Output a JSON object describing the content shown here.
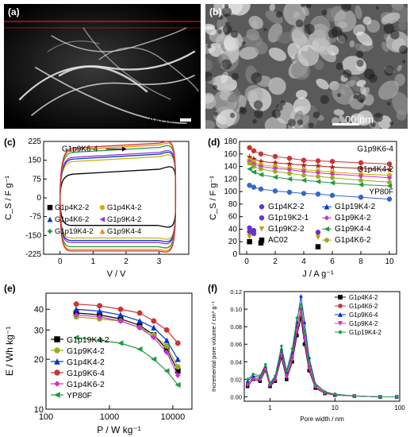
{
  "panels": {
    "a": {
      "label": "(a)",
      "scalebar_text": "200 nm"
    },
    "b": {
      "label": "(b)",
      "scalebar_text": "00 nm"
    },
    "c": {
      "label": "(c)"
    },
    "d": {
      "label": "(d)"
    },
    "e": {
      "label": "(e)"
    },
    "f": {
      "label": "(f)"
    }
  },
  "chart_data": [
    {
      "id": "c",
      "type": "line",
      "xlabel": "V / V",
      "ylabel": "C_S / F g⁻¹",
      "xlim": [
        -0.5,
        3.9
      ],
      "ylim": [
        -225,
        225
      ],
      "xticks": [
        0,
        1,
        2,
        3
      ],
      "yticks": [
        -225,
        -150,
        -75,
        0,
        75,
        150,
        225
      ],
      "annotation": "G1p9K6-4",
      "legend": [
        {
          "name": "G1p4K2-2",
          "color": "#000000",
          "marker": "square"
        },
        {
          "name": "G1p4K4-2",
          "color": "#c8b400",
          "marker": "circle"
        },
        {
          "name": "G1p4K6-2",
          "color": "#0033cc",
          "marker": "triangle"
        },
        {
          "name": "G1p9K4-2",
          "color": "#9933cc",
          "marker": "triangle-left"
        },
        {
          "name": "G1p19K4-2",
          "color": "#229944",
          "marker": "diamond"
        },
        {
          "name": "G1p9K4-4",
          "color": "#ff8800",
          "marker": "triangle"
        }
      ],
      "series": [
        {
          "name": "G1p4K2-2",
          "color": "#000000",
          "top": 108,
          "bottom": -110
        },
        {
          "name": "G1p4K4-2",
          "color": "#c8b400",
          "top": 158,
          "bottom": -160
        },
        {
          "name": "G1p4K6-2",
          "color": "#0033cc",
          "top": 168,
          "bottom": -170
        },
        {
          "name": "G1p9K4-2",
          "color": "#9933cc",
          "top": 175,
          "bottom": -178
        },
        {
          "name": "G1p19K4-2",
          "color": "#229944",
          "top": 195,
          "bottom": -195
        },
        {
          "name": "G1p9K4-4",
          "color": "#ff8800",
          "top": 205,
          "bottom": -206
        },
        {
          "name": "G1p9K6-4",
          "color": "#cc3333",
          "top": 212,
          "bottom": -212
        }
      ]
    },
    {
      "id": "d",
      "type": "line",
      "xlabel": "J / A g⁻¹",
      "ylabel": "C_S / F g⁻¹",
      "xlim": [
        -0.5,
        10.5
      ],
      "ylim": [
        0,
        180
      ],
      "xticks": [
        0,
        2,
        4,
        6,
        8,
        10
      ],
      "yticks": [
        0,
        20,
        40,
        60,
        80,
        100,
        120,
        140,
        160,
        180
      ],
      "x": [
        0.2,
        0.5,
        1,
        2,
        3,
        4,
        5,
        6,
        8,
        10
      ],
      "series": [
        {
          "name": "G1p9K6-4",
          "color": "#cc3333",
          "marker": "circle",
          "values": [
            170,
            165,
            160,
            156,
            153,
            150,
            149,
            148,
            146,
            144
          ]
        },
        {
          "name": "G1p9K4-4",
          "color": "#aa2222",
          "marker": "star",
          "values": [
            155,
            152,
            148,
            146,
            144,
            142,
            141,
            139,
            137,
            135
          ]
        },
        {
          "name": "G1p4K4-2",
          "color": "#c8b400",
          "marker": "circle",
          "values": [
            150,
            147,
            143,
            140,
            137,
            135,
            133,
            131,
            128,
            126
          ]
        },
        {
          "name": "G1p9K4-2",
          "color": "#cc33cc",
          "marker": "diamond",
          "values": [
            148,
            144,
            140,
            137,
            135,
            132,
            130,
            128,
            125,
            122
          ]
        },
        {
          "name": "G1p4K6-2",
          "color": "#99aa22",
          "marker": "pentagon",
          "values": [
            145,
            140,
            136,
            132,
            129,
            126,
            124,
            122,
            118,
            115
          ]
        },
        {
          "name": "G1p9K4-4",
          "color": "#229944",
          "marker": "triangle-left",
          "values": [
            136,
            131,
            127,
            123,
            120,
            118,
            116,
            114,
            111,
            109
          ]
        },
        {
          "name": "YP80F",
          "color": "#3366cc",
          "marker": "circle",
          "values": [
            110,
            107,
            104,
            101,
            99,
            97,
            96,
            94,
            91,
            88
          ]
        }
      ],
      "labels_on_plot": [
        "G1p9K6-4",
        "G1p4K4-2",
        "YP80F"
      ],
      "scatter_legend_left": [
        {
          "name": "G1p4K2-2",
          "color": "#6633cc",
          "marker": "circle"
        },
        {
          "name": "G1p19K2-1",
          "color": "#6633cc",
          "marker": "circle"
        },
        {
          "name": "G1p9K2-2",
          "color": "#c8a000",
          "marker": "triangle-down"
        },
        {
          "name": "AC02",
          "color": "#000000",
          "marker": "square"
        }
      ],
      "scatter_points": [
        {
          "name": "G1p4K2-2",
          "color": "#6633cc",
          "points": [
            [
              0.2,
              42
            ],
            [
              0.5,
              38
            ],
            [
              5,
              35
            ]
          ]
        },
        {
          "name": "G1p19K2-1",
          "color": "#6633cc",
          "points": [
            [
              0.2,
              36
            ],
            [
              0.5,
              33
            ]
          ]
        },
        {
          "name": "G1p9K2-2",
          "color": "#c8a000",
          "points": [
            [
              0.2,
              28
            ],
            [
              5,
              27
            ]
          ]
        },
        {
          "name": "AC02",
          "color": "#000000",
          "points": [
            [
              0.2,
              20
            ],
            [
              1,
              18
            ],
            [
              5,
              12
            ]
          ]
        }
      ],
      "legend_right": [
        {
          "name": "G1p19K4-2",
          "color": "#0033cc",
          "marker": "triangle"
        },
        {
          "name": "G1p9K4-2",
          "color": "#cc33cc",
          "marker": "diamond"
        },
        {
          "name": "G1p9K4-4",
          "color": "#229944",
          "marker": "triangle-left"
        },
        {
          "name": "G1p4K6-2",
          "color": "#99aa22",
          "marker": "pentagon"
        }
      ]
    },
    {
      "id": "e",
      "type": "line",
      "xlabel": "P / W kg⁻¹",
      "ylabel": "E / Wh kg⁻¹",
      "xscale": "log",
      "yscale": "log",
      "xlim": [
        100,
        20000
      ],
      "ylim": [
        10,
        50
      ],
      "xticks": [
        100,
        1000,
        10000
      ],
      "xtick_labels": [
        "100",
        "1000",
        "10000"
      ],
      "yticks": [
        10,
        20,
        30,
        40
      ],
      "ytick_labels": [
        "10",
        "20",
        "30",
        "40"
      ],
      "x": [
        300,
        700,
        1500,
        3000,
        5000,
        8000,
        12000
      ],
      "series": [
        {
          "name": "G1p19K4-2",
          "color": "#000000",
          "marker": "square",
          "values": [
            38,
            37,
            35,
            32,
            28,
            23,
            17
          ]
        },
        {
          "name": "G1p9K4-2",
          "color": "#99aa22",
          "marker": "circle",
          "values": [
            36,
            35,
            34,
            31,
            28,
            24,
            18
          ]
        },
        {
          "name": "G1p4K4-2",
          "color": "#0033cc",
          "marker": "triangle",
          "values": [
            40,
            39,
            37,
            34,
            31,
            26,
            20
          ]
        },
        {
          "name": "G1p9K6-4",
          "color": "#cc3333",
          "marker": "circle",
          "values": [
            43,
            42,
            40,
            38,
            34,
            30,
            25
          ]
        },
        {
          "name": "G1p4K6-2",
          "color": "#cc33cc",
          "marker": "diamond",
          "values": [
            37,
            36,
            34,
            31,
            27,
            22,
            16
          ]
        },
        {
          "name": "YP80F",
          "color": "#229944",
          "marker": "triangle-left",
          "values": [
            27,
            26,
            25,
            23,
            20,
            17,
            14
          ]
        }
      ]
    },
    {
      "id": "f",
      "type": "line",
      "xlabel": "Pore width / nm",
      "ylabel": "Incremental pore volume / cm³ g⁻¹",
      "xscale": "log",
      "xlim": [
        0.4,
        100
      ],
      "ylim": [
        -0.005,
        0.12
      ],
      "xticks": [
        1,
        10,
        100
      ],
      "xtick_labels": [
        "1",
        "10",
        "100"
      ],
      "yticks": [
        0.0,
        0.02,
        0.04,
        0.06,
        0.08,
        0.1,
        0.12
      ],
      "ytick_labels": [
        "0.00",
        "0.02",
        "0.04",
        "0.06",
        "0.08",
        "0.10",
        "0.12"
      ],
      "legend": [
        {
          "name": "G1p4K4-2",
          "color": "#000000",
          "marker": "square"
        },
        {
          "name": "G1p4K6-2",
          "color": "#cc3333",
          "marker": "circle"
        },
        {
          "name": "G1p9K6-4",
          "color": "#0033cc",
          "marker": "triangle"
        },
        {
          "name": "G1p9K4-2",
          "color": "#cc33cc",
          "marker": "triangle-down"
        },
        {
          "name": "G1p19K4-2",
          "color": "#229944",
          "marker": "diamond"
        }
      ],
      "series": [
        {
          "name": "G1p4K4-2",
          "color": "#000000",
          "values": [
            [
              0.45,
              0.012
            ],
            [
              0.55,
              0.02
            ],
            [
              0.7,
              0.018
            ],
            [
              0.85,
              0.03
            ],
            [
              1.0,
              0.012
            ],
            [
              1.2,
              0.018
            ],
            [
              1.5,
              0.045
            ],
            [
              1.8,
              0.02
            ],
            [
              2.2,
              0.04
            ],
            [
              2.6,
              0.07
            ],
            [
              3.0,
              0.09
            ],
            [
              3.4,
              0.06
            ],
            [
              4,
              0.03
            ],
            [
              5,
              0.01
            ],
            [
              7,
              0.004
            ],
            [
              10,
              0.002
            ],
            [
              20,
              0.001
            ],
            [
              50,
              0.0
            ],
            [
              90,
              0.0
            ]
          ]
        },
        {
          "name": "G1p4K6-2",
          "color": "#cc3333",
          "values": [
            [
              0.45,
              0.015
            ],
            [
              0.55,
              0.022
            ],
            [
              0.7,
              0.02
            ],
            [
              0.85,
              0.033
            ],
            [
              1.0,
              0.014
            ],
            [
              1.2,
              0.02
            ],
            [
              1.5,
              0.05
            ],
            [
              1.8,
              0.024
            ],
            [
              2.2,
              0.045
            ],
            [
              2.6,
              0.08
            ],
            [
              3.0,
              0.1
            ],
            [
              3.4,
              0.07
            ],
            [
              4,
              0.035
            ],
            [
              5,
              0.012
            ],
            [
              7,
              0.005
            ],
            [
              10,
              0.003
            ],
            [
              20,
              0.001
            ],
            [
              50,
              0.0
            ],
            [
              90,
              0.0
            ]
          ]
        },
        {
          "name": "G1p9K6-4",
          "color": "#0033cc",
          "values": [
            [
              0.45,
              0.018
            ],
            [
              0.55,
              0.024
            ],
            [
              0.7,
              0.022
            ],
            [
              0.85,
              0.035
            ],
            [
              1.0,
              0.015
            ],
            [
              1.2,
              0.022
            ],
            [
              1.5,
              0.055
            ],
            [
              1.8,
              0.028
            ],
            [
              2.2,
              0.05
            ],
            [
              2.6,
              0.085
            ],
            [
              3.0,
              0.115
            ],
            [
              3.4,
              0.085
            ],
            [
              4,
              0.045
            ],
            [
              5,
              0.015
            ],
            [
              7,
              0.006
            ],
            [
              10,
              0.003
            ],
            [
              20,
              0.001
            ],
            [
              50,
              0.0
            ],
            [
              90,
              0.0
            ]
          ]
        },
        {
          "name": "G1p9K4-2",
          "color": "#cc33cc",
          "values": [
            [
              0.45,
              0.013
            ],
            [
              0.55,
              0.02
            ],
            [
              0.7,
              0.019
            ],
            [
              0.85,
              0.031
            ],
            [
              1.0,
              0.013
            ],
            [
              1.2,
              0.019
            ],
            [
              1.5,
              0.048
            ],
            [
              1.8,
              0.022
            ],
            [
              2.2,
              0.042
            ],
            [
              2.6,
              0.075
            ],
            [
              3.0,
              0.095
            ],
            [
              3.4,
              0.065
            ],
            [
              4,
              0.032
            ],
            [
              5,
              0.011
            ],
            [
              7,
              0.004
            ],
            [
              10,
              0.002
            ],
            [
              20,
              0.001
            ],
            [
              50,
              0.0
            ],
            [
              90,
              0.0
            ]
          ]
        },
        {
          "name": "G1p19K4-2",
          "color": "#229944",
          "values": [
            [
              0.45,
              0.02
            ],
            [
              0.55,
              0.026
            ],
            [
              0.7,
              0.024
            ],
            [
              0.85,
              0.037
            ],
            [
              1.0,
              0.016
            ],
            [
              1.2,
              0.024
            ],
            [
              1.5,
              0.058
            ],
            [
              1.8,
              0.03
            ],
            [
              2.2,
              0.055
            ],
            [
              2.6,
              0.09
            ],
            [
              3.0,
              0.105
            ],
            [
              3.4,
              0.075
            ],
            [
              4,
              0.04
            ],
            [
              5,
              0.014
            ],
            [
              7,
              0.006
            ],
            [
              10,
              0.003
            ],
            [
              20,
              0.001
            ],
            [
              50,
              0.0
            ],
            [
              90,
              0.0
            ]
          ]
        }
      ]
    }
  ]
}
